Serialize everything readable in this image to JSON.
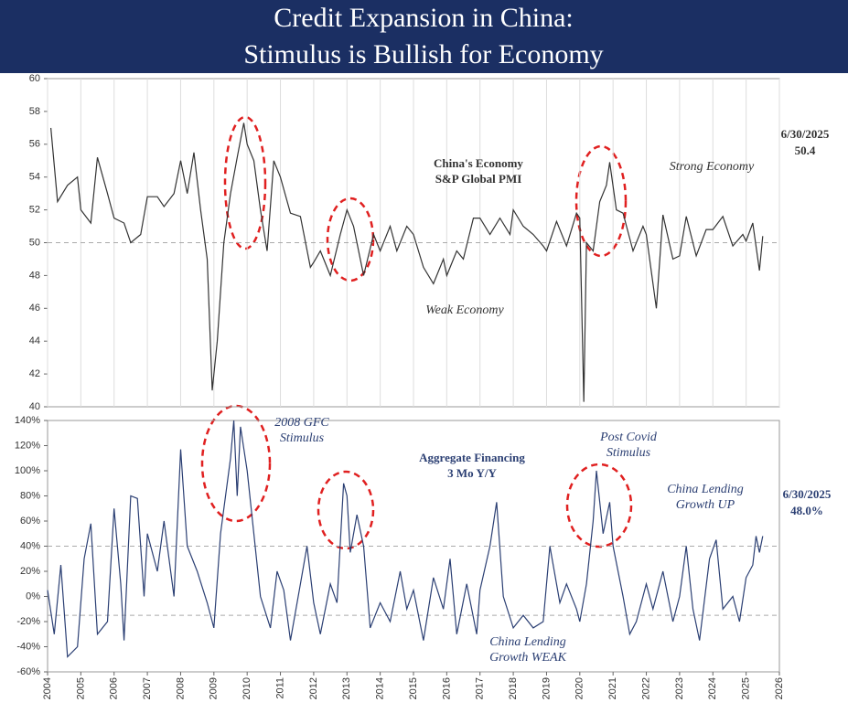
{
  "title": [
    "Credit Expansion in China:",
    "Stimulus is Bullish for Economy"
  ],
  "chart_data": [
    {
      "type": "line",
      "series": [
        {
          "name": [
            "China's Economy",
            "S&P Global PMI"
          ],
          "color": "#333333",
          "x": [
            2004.1,
            2004.3,
            2004.6,
            2004.9,
            2005.0,
            2005.3,
            2005.5,
            2005.8,
            2006.0,
            2006.3,
            2006.5,
            2006.8,
            2007.0,
            2007.3,
            2007.5,
            2007.8,
            2008.0,
            2008.2,
            2008.4,
            2008.6,
            2008.8,
            2008.95,
            2009.1,
            2009.3,
            2009.5,
            2009.7,
            2009.9,
            2010.0,
            2010.2,
            2010.4,
            2010.6,
            2010.8,
            2011.0,
            2011.3,
            2011.6,
            2011.9,
            2012.0,
            2012.2,
            2012.5,
            2012.8,
            2013.0,
            2013.2,
            2013.5,
            2013.8,
            2014.0,
            2014.3,
            2014.5,
            2014.8,
            2015.0,
            2015.3,
            2015.6,
            2015.9,
            2016.0,
            2016.3,
            2016.5,
            2016.8,
            2017.0,
            2017.3,
            2017.6,
            2017.9,
            2018.0,
            2018.3,
            2018.6,
            2018.9,
            2019.0,
            2019.3,
            2019.6,
            2019.9,
            2020.0,
            2020.12,
            2020.2,
            2020.4,
            2020.6,
            2020.8,
            2020.9,
            2021.1,
            2021.3,
            2021.6,
            2021.9,
            2022.0,
            2022.3,
            2022.5,
            2022.8,
            2023.0,
            2023.2,
            2023.5,
            2023.8,
            2024.0,
            2024.3,
            2024.6,
            2024.9,
            2025.0,
            2025.2,
            2025.4,
            2025.5
          ],
          "values": [
            57,
            52.5,
            53.5,
            54,
            52,
            51.2,
            55.2,
            53,
            51.5,
            51.2,
            50,
            50.5,
            52.8,
            52.8,
            52.2,
            53,
            55,
            53,
            55.5,
            52,
            49,
            41,
            44,
            50,
            53,
            55.2,
            57.3,
            56,
            55,
            52,
            49.5,
            55,
            54,
            51.8,
            51.6,
            48.5,
            48.8,
            49.5,
            48,
            50.5,
            52,
            51,
            48,
            50.5,
            49.5,
            51,
            49.5,
            51,
            50.5,
            48.5,
            47.5,
            49,
            48,
            49.5,
            49,
            51.5,
            51.5,
            50.5,
            51.5,
            50.5,
            52,
            51,
            50.5,
            49.8,
            49.5,
            51.3,
            49.8,
            51.8,
            51.5,
            40.3,
            50,
            49.5,
            52.5,
            53.5,
            54.9,
            52,
            51.8,
            49.5,
            51,
            50.5,
            46,
            51.7,
            49,
            49.2,
            51.6,
            49.2,
            50.8,
            50.8,
            51.6,
            49.8,
            50.5,
            50.1,
            51.2,
            48.3,
            50.4
          ]
        }
      ],
      "xlim": [
        2004,
        2026
      ],
      "xticks": [
        2004,
        2005,
        2006,
        2007,
        2008,
        2009,
        2010,
        2011,
        2012,
        2013,
        2014,
        2015,
        2016,
        2017,
        2018,
        2019,
        2020,
        2021,
        2022,
        2023,
        2024,
        2025,
        2026
      ],
      "ylim": [
        40,
        60
      ],
      "yticks": [
        40,
        42,
        44,
        46,
        48,
        50,
        52,
        54,
        56,
        58,
        60
      ],
      "reference_lines": [
        50
      ],
      "annotations": [
        [
          "Strong Economy"
        ],
        [
          "Weak Economy"
        ]
      ],
      "latest": {
        "date": "6/30/2025",
        "label": "50.4"
      }
    },
    {
      "type": "line",
      "series": [
        {
          "name": [
            "Aggregate Financing",
            "3 Mo Y/Y"
          ],
          "color": "#2b3f73",
          "x": [
            2004.0,
            2004.2,
            2004.4,
            2004.6,
            2004.9,
            2005.1,
            2005.3,
            2005.5,
            2005.8,
            2006.0,
            2006.2,
            2006.3,
            2006.5,
            2006.7,
            2006.9,
            2007.0,
            2007.3,
            2007.5,
            2007.8,
            2008.0,
            2008.2,
            2008.5,
            2008.8,
            2009.0,
            2009.2,
            2009.5,
            2009.6,
            2009.7,
            2009.8,
            2010.0,
            2010.2,
            2010.4,
            2010.7,
            2010.9,
            2011.1,
            2011.3,
            2011.6,
            2011.8,
            2012.0,
            2012.2,
            2012.5,
            2012.7,
            2012.9,
            2013.0,
            2013.1,
            2013.3,
            2013.5,
            2013.7,
            2014.0,
            2014.3,
            2014.6,
            2014.8,
            2015.0,
            2015.3,
            2015.6,
            2015.9,
            2016.1,
            2016.3,
            2016.6,
            2016.9,
            2017.0,
            2017.3,
            2017.5,
            2017.7,
            2018.0,
            2018.3,
            2018.6,
            2018.9,
            2019.1,
            2019.4,
            2019.6,
            2019.9,
            2020.0,
            2020.2,
            2020.4,
            2020.5,
            2020.7,
            2020.9,
            2021.0,
            2021.3,
            2021.5,
            2021.7,
            2022.0,
            2022.2,
            2022.5,
            2022.8,
            2023.0,
            2023.2,
            2023.4,
            2023.6,
            2023.9,
            2024.1,
            2024.3,
            2024.6,
            2024.8,
            2025.0,
            2025.2,
            2025.3,
            2025.4,
            2025.5
          ],
          "values": [
            5,
            -30,
            25,
            -48,
            -40,
            30,
            58,
            -30,
            -20,
            70,
            10,
            -35,
            80,
            78,
            0,
            50,
            20,
            60,
            0,
            117,
            40,
            20,
            -5,
            -25,
            50,
            110,
            140,
            80,
            135,
            100,
            50,
            0,
            -25,
            20,
            5,
            -35,
            10,
            40,
            -5,
            -30,
            10,
            -5,
            90,
            80,
            35,
            65,
            40,
            -25,
            -5,
            -20,
            20,
            -10,
            5,
            -35,
            15,
            -10,
            30,
            -30,
            10,
            -30,
            5,
            40,
            75,
            0,
            -25,
            -15,
            -25,
            -20,
            40,
            -5,
            10,
            -10,
            -20,
            10,
            60,
            100,
            50,
            75,
            40,
            0,
            -30,
            -20,
            10,
            -10,
            20,
            -20,
            0,
            40,
            -10,
            -35,
            30,
            45,
            -10,
            0,
            -20,
            15,
            25,
            48,
            35,
            48
          ]
        }
      ],
      "xlim": [
        2004,
        2026
      ],
      "xticks": [
        2004,
        2005,
        2006,
        2007,
        2008,
        2009,
        2010,
        2011,
        2012,
        2013,
        2014,
        2015,
        2016,
        2017,
        2018,
        2019,
        2020,
        2021,
        2022,
        2023,
        2024,
        2025,
        2026
      ],
      "ylim": [
        -60,
        140
      ],
      "yticks": [
        {
          "value": -60,
          "label": "-60%"
        },
        {
          "value": -40,
          "label": "-40%"
        },
        {
          "value": -20,
          "label": "-20%"
        },
        {
          "value": 0,
          "label": "0%"
        },
        {
          "value": 20,
          "label": "20%"
        },
        {
          "value": 40,
          "label": "40%"
        },
        {
          "value": 60,
          "label": "60%"
        },
        {
          "value": 80,
          "label": "80%"
        },
        {
          "value": 100,
          "label": "100%"
        },
        {
          "value": 120,
          "label": "120%"
        },
        {
          "value": 140,
          "label": "140%"
        }
      ],
      "reference_lines": [
        40,
        -15
      ],
      "annotations": [
        [
          "2008 GFC",
          "Stimulus"
        ],
        [
          "Post Covid",
          "Stimulus"
        ],
        [
          "China Lending",
          "Growth UP"
        ],
        [
          "China Lending",
          "Growth WEAK"
        ]
      ],
      "latest": {
        "date": "6/30/2025",
        "label": "48.0%"
      }
    }
  ]
}
